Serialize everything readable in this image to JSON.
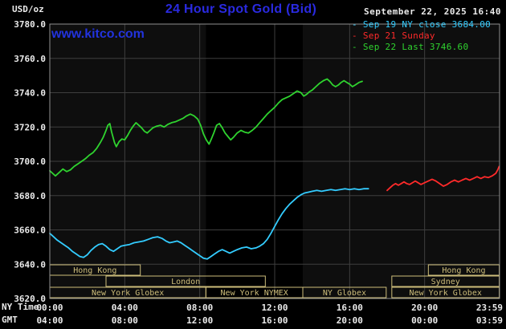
{
  "header": {
    "unit_label": "USD/oz",
    "title": "24 Hour Spot Gold (Bid)",
    "datetime": "September 22, 2025 16:40",
    "watermark": "www.kitco.com"
  },
  "legend": {
    "marker": "-",
    "items": [
      {
        "id": "sep19",
        "label": "Sep 19 NY close 3684.00",
        "color": "#33ccff"
      },
      {
        "id": "sep21",
        "label": "Sep 21 Sunday",
        "color": "#ff2a2a"
      },
      {
        "id": "sep22",
        "label": "Sep 22 Last 3746.60",
        "color": "#2fd32f"
      }
    ]
  },
  "axes": {
    "ny_label": "NY Time",
    "gmt_label": "GMT",
    "tick_hours": [
      0,
      4,
      8,
      12,
      16,
      20,
      23.983
    ],
    "ny_ticks": [
      "00:00",
      "04:00",
      "08:00",
      "12:00",
      "16:00",
      "20:00",
      "23:59"
    ],
    "gmt_ticks": [
      "04:00",
      "08:00",
      "12:00",
      "16:00",
      "20:00",
      "00:00",
      "03:59"
    ],
    "y_ticks": [
      "3780.0",
      "3760.0",
      "3740.0",
      "3720.0",
      "3700.0",
      "3680.0",
      "3660.0",
      "3640.0",
      "3620.0"
    ]
  },
  "sessions": [
    {
      "label": "Hong Kong",
      "row": 0,
      "start": 0,
      "end": 4.83
    },
    {
      "label": "Hong Kong",
      "row": 0,
      "start": 20.2,
      "end": 23.983
    },
    {
      "label": "London",
      "row": 1,
      "start": 3,
      "end": 11.5
    },
    {
      "label": "Sydney",
      "row": 1,
      "start": 18.25,
      "end": 23.983
    },
    {
      "label": "New York Globex",
      "row": 2,
      "start": 0,
      "end": 8.33
    },
    {
      "label": "New York NYMEX",
      "row": 2,
      "start": 8.33,
      "end": 13.5
    },
    {
      "label": "NY Globex",
      "row": 2,
      "start": 13.5,
      "end": 17.95
    },
    {
      "label": "New York Globex",
      "row": 2,
      "start": 18.25,
      "end": 23.983
    }
  ],
  "colors": {
    "page_bg": "#000000",
    "plot_bg": "#0e0e0e",
    "band": "#000000",
    "grid": "#3e3e3e",
    "border": "#909090",
    "axis_text": "#eaeaea",
    "session": "#cdbd7a",
    "title_blue": "#2a2ae0",
    "watermark_blue": "#2233dd"
  },
  "chart_data": {
    "type": "line",
    "title": "24 Hour Spot Gold (Bid)",
    "xlabel": "NY time (hours)",
    "ylabel": "USD/oz",
    "xlim": [
      0,
      24
    ],
    "ylim": [
      3620,
      3780
    ],
    "y_grid_step": 20,
    "x_grid_step": 4,
    "grid": true,
    "legend_position": "top-right",
    "shaded_band_hours": [
      8.33,
      13.5
    ],
    "series": [
      {
        "id": "sep19",
        "name": "Sep 19 NY close 3684.00",
        "color": "#33ccff",
        "close": 3684.0,
        "points": [
          [
            0,
            3658
          ],
          [
            0.2,
            3656
          ],
          [
            0.4,
            3654
          ],
          [
            0.6,
            3652.5
          ],
          [
            0.8,
            3651
          ],
          [
            1,
            3649.5
          ],
          [
            1.2,
            3647.5
          ],
          [
            1.4,
            3646
          ],
          [
            1.6,
            3644.5
          ],
          [
            1.8,
            3644
          ],
          [
            2,
            3645.5
          ],
          [
            2.2,
            3648
          ],
          [
            2.4,
            3650
          ],
          [
            2.6,
            3651.5
          ],
          [
            2.8,
            3652
          ],
          [
            3,
            3650.5
          ],
          [
            3.2,
            3648.5
          ],
          [
            3.4,
            3647.5
          ],
          [
            3.6,
            3649
          ],
          [
            3.8,
            3650.5
          ],
          [
            4,
            3651
          ],
          [
            4.25,
            3651.5
          ],
          [
            4.5,
            3652.5
          ],
          [
            4.75,
            3653
          ],
          [
            5,
            3653.5
          ],
          [
            5.25,
            3654.5
          ],
          [
            5.5,
            3655.5
          ],
          [
            5.75,
            3656
          ],
          [
            6,
            3655
          ],
          [
            6.2,
            3653.5
          ],
          [
            6.4,
            3652.5
          ],
          [
            6.6,
            3653
          ],
          [
            6.8,
            3653.5
          ],
          [
            7,
            3652.5
          ],
          [
            7.2,
            3651
          ],
          [
            7.4,
            3649.5
          ],
          [
            7.6,
            3648
          ],
          [
            7.8,
            3646.5
          ],
          [
            8,
            3645
          ],
          [
            8.2,
            3643.5
          ],
          [
            8.4,
            3643
          ],
          [
            8.6,
            3644.5
          ],
          [
            8.8,
            3646
          ],
          [
            9,
            3647.5
          ],
          [
            9.2,
            3648.5
          ],
          [
            9.4,
            3647.5
          ],
          [
            9.6,
            3646.5
          ],
          [
            9.8,
            3647.5
          ],
          [
            10,
            3648.5
          ],
          [
            10.25,
            3649.5
          ],
          [
            10.5,
            3650
          ],
          [
            10.75,
            3649
          ],
          [
            11,
            3649.5
          ],
          [
            11.2,
            3650.5
          ],
          [
            11.4,
            3652
          ],
          [
            11.6,
            3654.5
          ],
          [
            11.8,
            3658
          ],
          [
            12,
            3662
          ],
          [
            12.2,
            3666
          ],
          [
            12.4,
            3669.5
          ],
          [
            12.6,
            3672.5
          ],
          [
            12.8,
            3675
          ],
          [
            13,
            3677
          ],
          [
            13.2,
            3679
          ],
          [
            13.4,
            3680.5
          ],
          [
            13.6,
            3681.5
          ],
          [
            13.8,
            3682
          ],
          [
            14,
            3682.5
          ],
          [
            14.25,
            3683
          ],
          [
            14.5,
            3682.5
          ],
          [
            14.75,
            3683
          ],
          [
            15,
            3683.5
          ],
          [
            15.25,
            3683
          ],
          [
            15.5,
            3683.5
          ],
          [
            15.75,
            3684
          ],
          [
            16,
            3683.5
          ],
          [
            16.25,
            3684
          ],
          [
            16.5,
            3683.5
          ],
          [
            16.75,
            3684
          ],
          [
            17,
            3684
          ]
        ]
      },
      {
        "id": "sep21",
        "name": "Sep 21 Sunday",
        "color": "#ff2a2a",
        "points": [
          [
            18,
            3683
          ],
          [
            18.15,
            3684.5
          ],
          [
            18.3,
            3686
          ],
          [
            18.45,
            3687
          ],
          [
            18.6,
            3686
          ],
          [
            18.75,
            3687
          ],
          [
            18.9,
            3688
          ],
          [
            19.05,
            3687
          ],
          [
            19.2,
            3686.5
          ],
          [
            19.35,
            3687.5
          ],
          [
            19.5,
            3688.5
          ],
          [
            19.65,
            3687.5
          ],
          [
            19.8,
            3686.5
          ],
          [
            20,
            3687.5
          ],
          [
            20.2,
            3688.5
          ],
          [
            20.4,
            3689.5
          ],
          [
            20.6,
            3688.5
          ],
          [
            20.8,
            3687
          ],
          [
            21,
            3685.5
          ],
          [
            21.2,
            3686.5
          ],
          [
            21.4,
            3688
          ],
          [
            21.6,
            3689
          ],
          [
            21.8,
            3688
          ],
          [
            22,
            3689
          ],
          [
            22.2,
            3690
          ],
          [
            22.4,
            3689
          ],
          [
            22.6,
            3690
          ],
          [
            22.8,
            3691
          ],
          [
            23,
            3690
          ],
          [
            23.2,
            3691
          ],
          [
            23.4,
            3690.5
          ],
          [
            23.6,
            3691.5
          ],
          [
            23.8,
            3693
          ],
          [
            23.9,
            3695
          ],
          [
            23.98,
            3697
          ]
        ]
      },
      {
        "id": "sep22",
        "name": "Sep 22 Last 3746.60",
        "color": "#2fd32f",
        "last": 3746.6,
        "points": [
          [
            0,
            3694.5
          ],
          [
            0.15,
            3693
          ],
          [
            0.3,
            3691.5
          ],
          [
            0.5,
            3693.5
          ],
          [
            0.7,
            3695.5
          ],
          [
            0.9,
            3694
          ],
          [
            1.1,
            3695
          ],
          [
            1.3,
            3697
          ],
          [
            1.5,
            3698.5
          ],
          [
            1.7,
            3700
          ],
          [
            1.9,
            3701.5
          ],
          [
            2.1,
            3703.5
          ],
          [
            2.3,
            3705
          ],
          [
            2.5,
            3707.5
          ],
          [
            2.7,
            3711
          ],
          [
            2.85,
            3714
          ],
          [
            3,
            3718
          ],
          [
            3.1,
            3721
          ],
          [
            3.2,
            3722
          ],
          [
            3.3,
            3717
          ],
          [
            3.45,
            3711
          ],
          [
            3.55,
            3708.5
          ],
          [
            3.7,
            3711.5
          ],
          [
            3.85,
            3713
          ],
          [
            4,
            3712.5
          ],
          [
            4.15,
            3715
          ],
          [
            4.3,
            3718
          ],
          [
            4.45,
            3720.5
          ],
          [
            4.6,
            3722.5
          ],
          [
            4.75,
            3721
          ],
          [
            4.9,
            3719.5
          ],
          [
            5.05,
            3717.5
          ],
          [
            5.2,
            3716.5
          ],
          [
            5.35,
            3718
          ],
          [
            5.5,
            3719.5
          ],
          [
            5.7,
            3720.5
          ],
          [
            5.9,
            3721
          ],
          [
            6.1,
            3720
          ],
          [
            6.3,
            3721.5
          ],
          [
            6.5,
            3722.5
          ],
          [
            6.7,
            3723
          ],
          [
            6.9,
            3724
          ],
          [
            7.1,
            3725
          ],
          [
            7.3,
            3726.5
          ],
          [
            7.5,
            3727.5
          ],
          [
            7.7,
            3726.5
          ],
          [
            7.9,
            3724.5
          ],
          [
            8.05,
            3721
          ],
          [
            8.2,
            3716
          ],
          [
            8.35,
            3712.5
          ],
          [
            8.5,
            3710
          ],
          [
            8.6,
            3712.5
          ],
          [
            8.75,
            3716.5
          ],
          [
            8.9,
            3721
          ],
          [
            9.05,
            3722
          ],
          [
            9.2,
            3719.5
          ],
          [
            9.35,
            3716.5
          ],
          [
            9.5,
            3714.5
          ],
          [
            9.65,
            3712.5
          ],
          [
            9.8,
            3714
          ],
          [
            10,
            3716.5
          ],
          [
            10.2,
            3718
          ],
          [
            10.4,
            3717
          ],
          [
            10.6,
            3716.5
          ],
          [
            10.8,
            3718
          ],
          [
            11,
            3720
          ],
          [
            11.2,
            3722.5
          ],
          [
            11.4,
            3725
          ],
          [
            11.6,
            3727.5
          ],
          [
            11.8,
            3729.5
          ],
          [
            12,
            3731.5
          ],
          [
            12.2,
            3734
          ],
          [
            12.4,
            3736
          ],
          [
            12.6,
            3737
          ],
          [
            12.8,
            3738
          ],
          [
            13,
            3739.5
          ],
          [
            13.2,
            3741
          ],
          [
            13.4,
            3740
          ],
          [
            13.55,
            3738
          ],
          [
            13.7,
            3739
          ],
          [
            13.85,
            3740.5
          ],
          [
            14,
            3741.5
          ],
          [
            14.2,
            3743.5
          ],
          [
            14.4,
            3745.5
          ],
          [
            14.6,
            3747
          ],
          [
            14.8,
            3748
          ],
          [
            14.95,
            3746.5
          ],
          [
            15.1,
            3744.5
          ],
          [
            15.25,
            3743.5
          ],
          [
            15.4,
            3744.5
          ],
          [
            15.55,
            3746
          ],
          [
            15.7,
            3747
          ],
          [
            15.85,
            3746
          ],
          [
            16,
            3745
          ],
          [
            16.15,
            3743.5
          ],
          [
            16.3,
            3744.5
          ],
          [
            16.5,
            3746
          ],
          [
            16.67,
            3746.6
          ]
        ]
      }
    ]
  }
}
